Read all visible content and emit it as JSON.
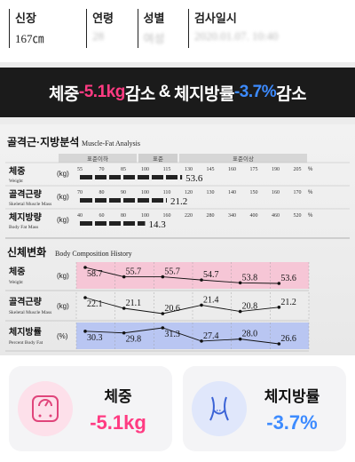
{
  "info": {
    "height_label": "신장",
    "height_value": "167㎝",
    "age_label": "연령",
    "age_value": "28",
    "gender_label": "성별",
    "gender_value": "여성",
    "date_label": "검사일시",
    "date_value": "2020.01.07. 10:40"
  },
  "banner": {
    "part1": "체중 ",
    "weight_change": "-5.1kg",
    "part2": " 감소",
    "amp": "&",
    "part3": "체지방률 ",
    "fat_change": "-3.7%",
    "part4": " 감소"
  },
  "analysis": {
    "title_kr": "골격근·지방분석",
    "title_en": "Muscle-Fat Analysis",
    "band_low": "표준이하",
    "band_std": "표준",
    "band_high": "표준이상",
    "rows": [
      {
        "label": "체중",
        "label_en": "Weight",
        "unit": "(kg)",
        "ticks": [
          "55",
          "70",
          "85",
          "100",
          "115",
          "130",
          "145",
          "160",
          "175",
          "190",
          "205"
        ],
        "tick_unit": "%",
        "value": "53.6",
        "fill": 0.47
      },
      {
        "label": "골격근량",
        "label_en": "Skeletal Muscle Mass",
        "unit": "(kg)",
        "ticks": [
          "70",
          "80",
          "90",
          "100",
          "110",
          "120",
          "130",
          "140",
          "150",
          "160",
          "170"
        ],
        "tick_unit": "%",
        "value": "21.2",
        "fill": 0.4
      },
      {
        "label": "체지방량",
        "label_en": "Body Fat Mass",
        "unit": "(kg)",
        "ticks": [
          "40",
          "60",
          "80",
          "100",
          "160",
          "220",
          "280",
          "340",
          "400",
          "460",
          "520"
        ],
        "tick_unit": "%",
        "value": "14.3",
        "fill": 0.3
      }
    ]
  },
  "history": {
    "title_kr": "신체변화",
    "title_en": "Body Composition History",
    "rows": [
      {
        "label": "체중",
        "label_en": "Weight",
        "unit": "(kg)",
        "values": [
          "58.7",
          "55.7",
          "55.7",
          "54.7",
          "53.8",
          "53.6"
        ],
        "color": "#f6c6d6"
      },
      {
        "label": "골격근량",
        "label_en": "Skeletal Muscle Mass",
        "unit": "(kg)",
        "values": [
          "22.1",
          "21.1",
          "20.6",
          "21.4",
          "20.8",
          "21.2"
        ],
        "color": "#ececec"
      },
      {
        "label": "체지방률",
        "label_en": "Percent Body Fat",
        "unit": "(%)",
        "values": [
          "30.3",
          "29.8",
          "31.3",
          "27.4",
          "28.0",
          "26.6"
        ],
        "color": "#b9c6f2"
      }
    ]
  },
  "cards": {
    "weight_label": "체중",
    "weight_value": "-5.1kg",
    "fat_label": "체지방률",
    "fat_value": "-3.7%"
  },
  "colors": {
    "pink": "#ff3b82",
    "blue": "#3d8bff",
    "banner_bg": "#1b1b1b"
  }
}
